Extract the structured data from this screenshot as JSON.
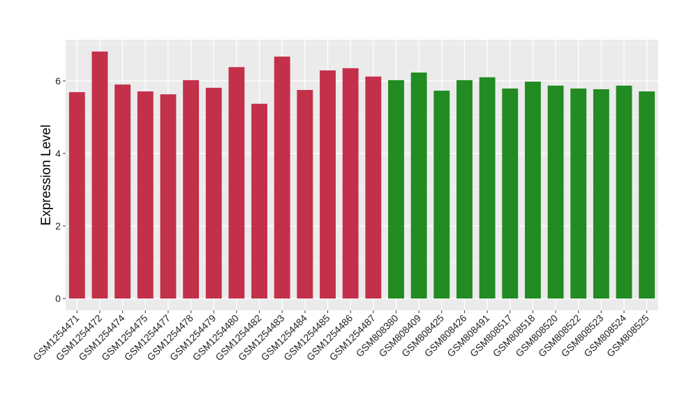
{
  "chart_data": {
    "type": "bar",
    "title": "",
    "xlabel": "",
    "ylabel": "Expression Level",
    "ylim": [
      -0.3,
      7.1
    ],
    "yticks": [
      0,
      2,
      4,
      6
    ],
    "grid": true,
    "categories": [
      "GSM1254471",
      "GSM1254472",
      "GSM1254474",
      "GSM1254475",
      "GSM1254477",
      "GSM1254478",
      "GSM1254479",
      "GSM1254480",
      "GSM1254482",
      "GSM1254483",
      "GSM1254484",
      "GSM1254485",
      "GSM1254486",
      "GSM1254487",
      "GSM808380",
      "GSM808409",
      "GSM808425",
      "GSM808426",
      "GSM808491",
      "GSM808517",
      "GSM808518",
      "GSM808520",
      "GSM808522",
      "GSM808523",
      "GSM808524",
      "GSM808525"
    ],
    "values": [
      5.69,
      6.81,
      5.9,
      5.71,
      5.63,
      6.02,
      5.81,
      6.38,
      5.37,
      6.67,
      5.75,
      6.29,
      6.35,
      6.12,
      6.02,
      6.23,
      5.73,
      6.02,
      6.1,
      5.79,
      5.98,
      5.87,
      5.79,
      5.77,
      5.87,
      5.71
    ],
    "groups": [
      0,
      0,
      0,
      0,
      0,
      0,
      0,
      0,
      0,
      0,
      0,
      0,
      0,
      0,
      1,
      1,
      1,
      1,
      1,
      1,
      1,
      1,
      1,
      1,
      1,
      1
    ],
    "colors": [
      "#C3304A",
      "#228B22"
    ],
    "panel_background": "#EBEBEB"
  }
}
